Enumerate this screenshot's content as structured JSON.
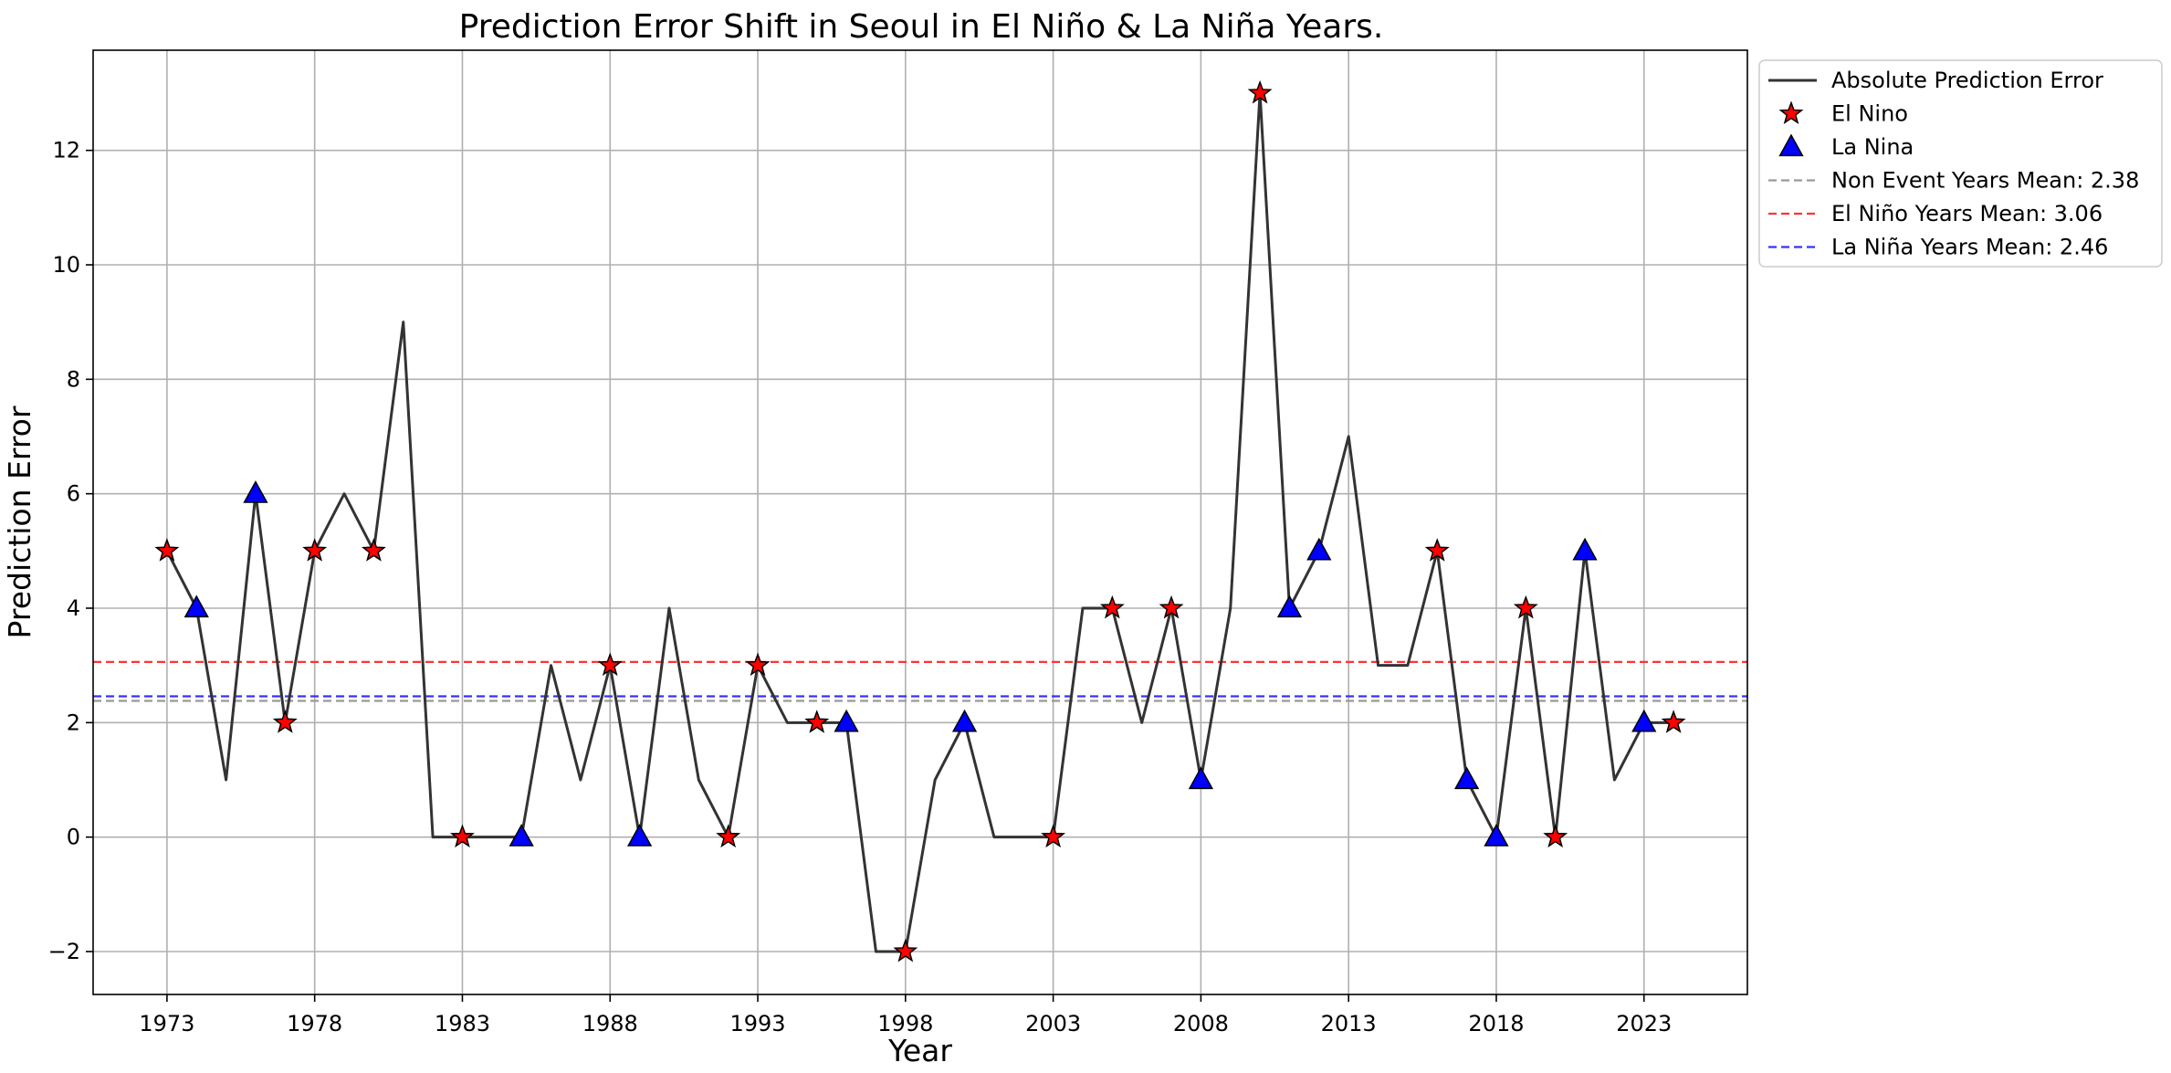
{
  "chart_data": {
    "type": "line",
    "title": "Prediction Error Shift in Seoul in El Niño & La Niña Years.",
    "xlabel": "Year",
    "ylabel": "Prediction Error",
    "xlim": [
      1970.5,
      2026.5
    ],
    "ylim": [
      -2.75,
      13.75
    ],
    "xticks": [
      1973,
      1978,
      1983,
      1988,
      1993,
      1998,
      2003,
      2008,
      2013,
      2018,
      2023
    ],
    "yticks": [
      -2,
      0,
      2,
      4,
      6,
      8,
      10,
      12
    ],
    "ytick_labels": [
      "−2",
      "0",
      "2",
      "4",
      "6",
      "8",
      "10",
      "12"
    ],
    "grid": true,
    "legend_position": "outside-top-right",
    "series": [
      {
        "name": "Absolute Prediction Error",
        "kind": "line",
        "color": "#333333",
        "x": [
          1973,
          1974,
          1975,
          1976,
          1977,
          1978,
          1979,
          1980,
          1981,
          1982,
          1983,
          1984,
          1985,
          1986,
          1987,
          1988,
          1989,
          1990,
          1991,
          1992,
          1993,
          1994,
          1995,
          1996,
          1997,
          1998,
          1999,
          2000,
          2001,
          2002,
          2003,
          2004,
          2005,
          2006,
          2007,
          2008,
          2009,
          2010,
          2011,
          2012,
          2013,
          2014,
          2015,
          2016,
          2017,
          2018,
          2019,
          2020,
          2021,
          2022,
          2023,
          2024
        ],
        "y": [
          5,
          4,
          1,
          6,
          2,
          5,
          6,
          5,
          9,
          0,
          0,
          0,
          0,
          3,
          1,
          3,
          0,
          4,
          1,
          0,
          3,
          2,
          2,
          2,
          -2,
          -2,
          1,
          2,
          0,
          0,
          0,
          4,
          4,
          2,
          4,
          1,
          4,
          13,
          4,
          5,
          7,
          3,
          3,
          5,
          1,
          0,
          4,
          0,
          5,
          1,
          2,
          2
        ]
      },
      {
        "name": "El Nino",
        "kind": "scatter",
        "marker": "star",
        "color": "#ff0000",
        "x": [
          1973,
          1977,
          1978,
          1980,
          1983,
          1988,
          1992,
          1993,
          1995,
          1998,
          2003,
          2005,
          2007,
          2010,
          2016,
          2019,
          2020,
          2024
        ],
        "y": [
          5,
          2,
          5,
          5,
          0,
          3,
          0,
          3,
          2,
          -2,
          0,
          4,
          4,
          13,
          5,
          4,
          0,
          2
        ]
      },
      {
        "name": "La Nina",
        "kind": "scatter",
        "marker": "triangle",
        "color": "#0000ff",
        "x": [
          1974,
          1976,
          1985,
          1989,
          1996,
          2000,
          2008,
          2011,
          2012,
          2017,
          2018,
          2021,
          2023
        ],
        "y": [
          4,
          6,
          0,
          0,
          2,
          2,
          1,
          4,
          5,
          1,
          0,
          5,
          2
        ]
      },
      {
        "name": "Non Event Years Mean: 2.38",
        "kind": "hline",
        "color": "#999999",
        "y": 2.38
      },
      {
        "name": "El Niño Years Mean: 3.06",
        "kind": "hline",
        "color": "#ff3333",
        "y": 3.06
      },
      {
        "name": "La Niña Years Mean: 2.46",
        "kind": "hline",
        "color": "#3333ff",
        "y": 2.46
      }
    ]
  }
}
